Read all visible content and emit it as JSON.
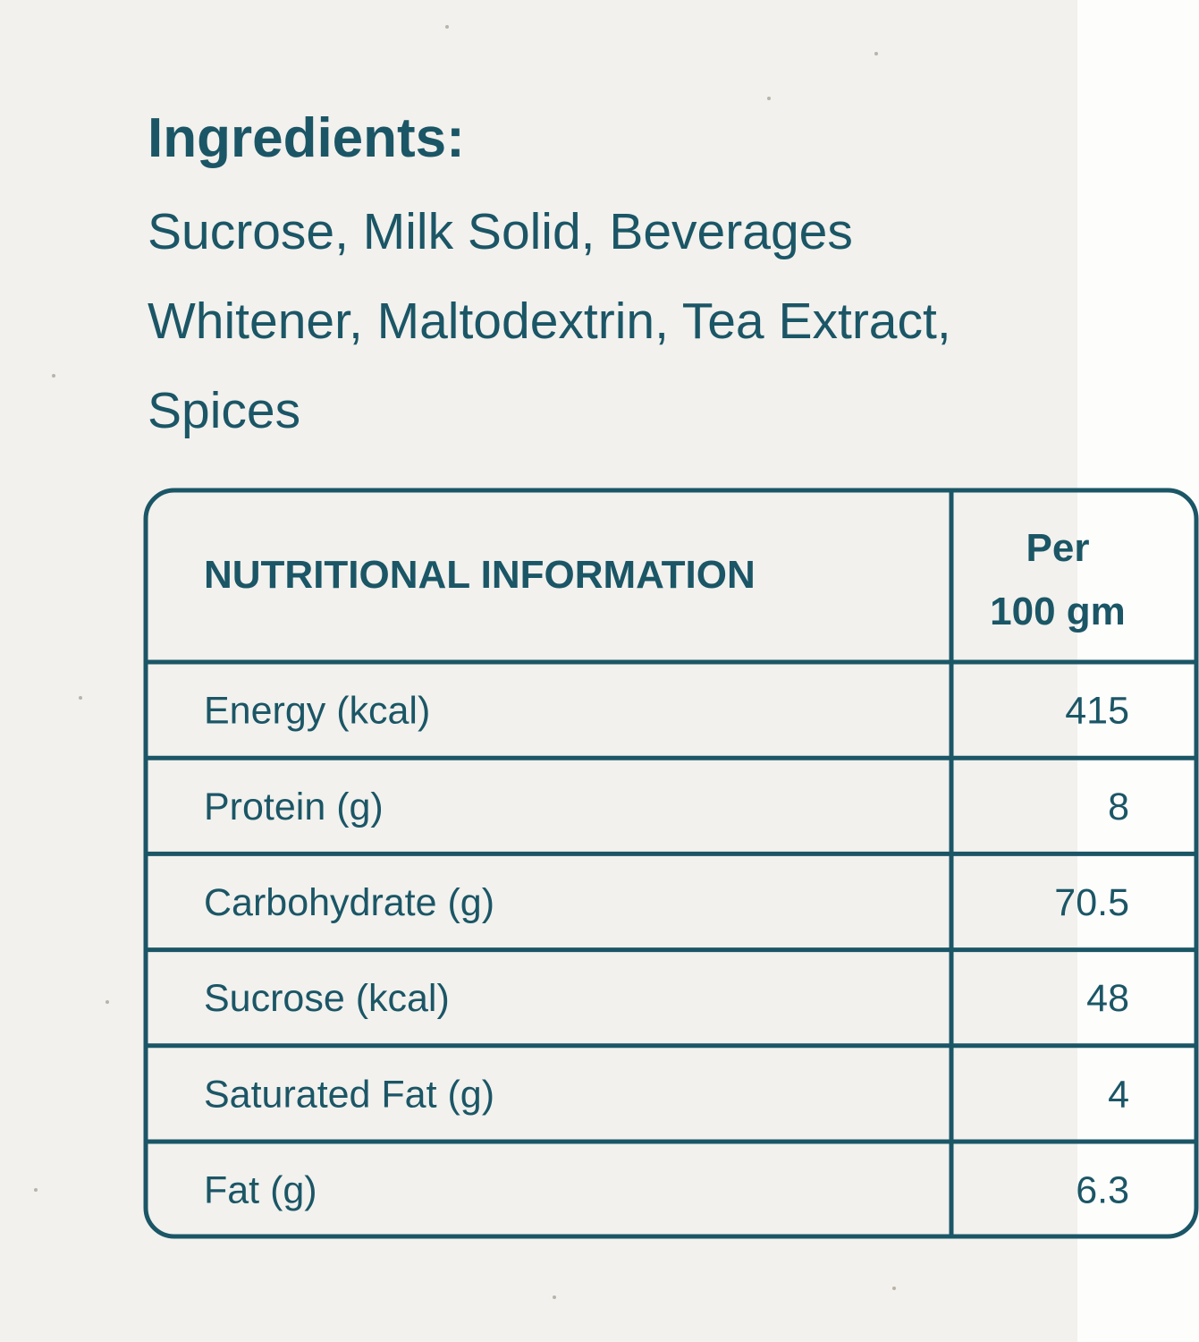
{
  "ingredients": {
    "title": "Ingredients:",
    "lines": [
      "Sucrose, Milk Solid, Beverages",
      "Whitener, Maltodextrin, Tea Extract,",
      "Spices"
    ]
  },
  "table": {
    "header": {
      "label": "NUTRITIONAL INFORMATION",
      "unit": [
        "Per",
        "100 gm"
      ]
    },
    "rows": [
      [
        "Energy (kcal)",
        415
      ],
      [
        "Protein (g)",
        8
      ],
      [
        "Carbohydrate (g)",
        70.5
      ],
      [
        "Sucrose (kcal)",
        48
      ],
      [
        "Saturated Fat (g)",
        4
      ],
      [
        "Fat (g)",
        6.3
      ]
    ]
  }
}
